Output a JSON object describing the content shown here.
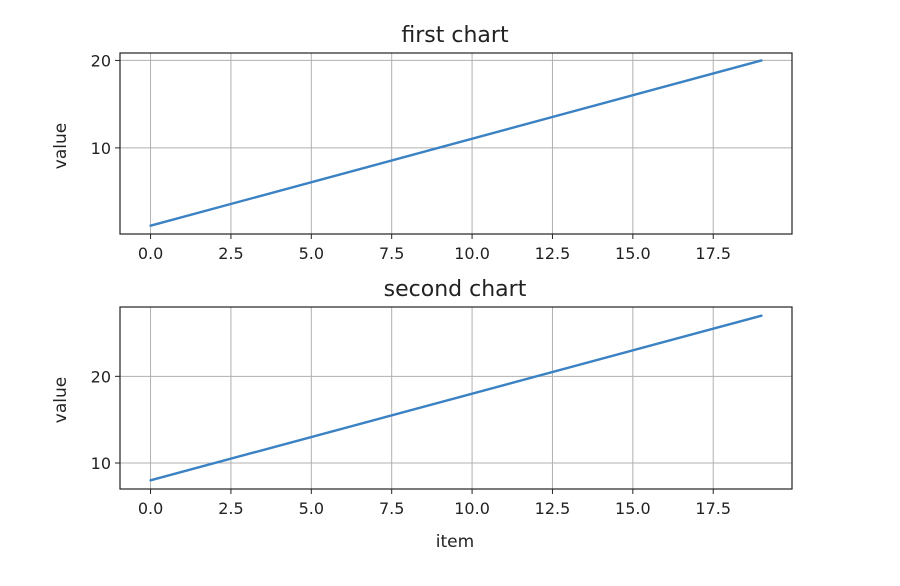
{
  "chart_data": [
    {
      "type": "line",
      "title": "first chart",
      "xlabel": "",
      "ylabel": "value",
      "grid": true,
      "xlim": [
        -0.95,
        19.95
      ],
      "ylim": [
        0.15,
        20.85
      ],
      "xticks": [
        0,
        2.5,
        5,
        7.5,
        10,
        12.5,
        15,
        17.5
      ],
      "xtick_labels": [
        "0.0",
        "2.5",
        "5.0",
        "7.5",
        "10.0",
        "12.5",
        "15.0",
        "17.5"
      ],
      "yticks": [
        10,
        20
      ],
      "ytick_labels": [
        "10",
        "20"
      ],
      "series": [
        {
          "color": "#3b82c4",
          "x": [
            0,
            19
          ],
          "y": [
            1.1,
            20.0
          ]
        }
      ]
    },
    {
      "type": "line",
      "title": "second chart",
      "xlabel": "item",
      "ylabel": "value",
      "grid": true,
      "xlim": [
        -0.95,
        19.95
      ],
      "ylim": [
        7.0,
        28.0
      ],
      "xticks": [
        0,
        2.5,
        5,
        7.5,
        10,
        12.5,
        15,
        17.5
      ],
      "xtick_labels": [
        "0.0",
        "2.5",
        "5.0",
        "7.5",
        "10.0",
        "12.5",
        "15.0",
        "17.5"
      ],
      "yticks": [
        10,
        20
      ],
      "ytick_labels": [
        "10",
        "20"
      ],
      "series": [
        {
          "color": "#3b82c4",
          "x": [
            0,
            19
          ],
          "y": [
            8.0,
            27.0
          ]
        }
      ]
    }
  ]
}
